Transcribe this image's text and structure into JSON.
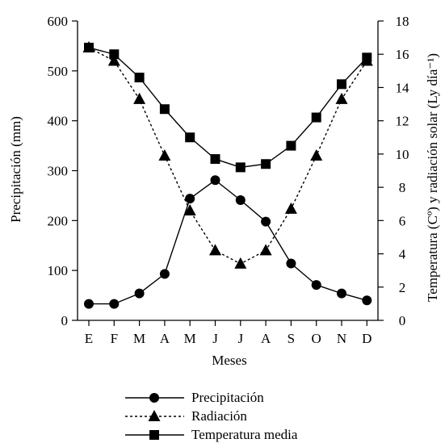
{
  "chart_data": {
    "type": "line",
    "categories": [
      "E",
      "F",
      "M",
      "A",
      "M",
      "J",
      "J",
      "A",
      "S",
      "O",
      "N",
      "D"
    ],
    "xlabel": "Meses",
    "ylabel_left": "Precipitación (mm)",
    "ylabel_right": "Temperatura (Cº) y radiación solar (Ly día⁻¹)",
    "ylim_left": [
      0,
      600
    ],
    "yticks_left": [
      0,
      100,
      200,
      300,
      400,
      500,
      600
    ],
    "ylim_right": [
      0,
      18
    ],
    "yticks_right": [
      0,
      2,
      4,
      6,
      8,
      10,
      12,
      14,
      16,
      18
    ],
    "grid": false,
    "legend_position": "bottom-center",
    "series": [
      {
        "name": "Precipitación",
        "axis": "left",
        "marker": "circle",
        "line": "solid",
        "values": [
          33,
          33,
          54,
          93,
          244,
          281,
          241,
          198,
          114,
          71,
          54,
          40
        ]
      },
      {
        "name": "Radiación",
        "axis": "right",
        "marker": "triangle",
        "line": "dotted",
        "values": [
          16.4,
          15.6,
          13.3,
          9.9,
          6.6,
          4.2,
          3.4,
          4.2,
          6.7,
          9.9,
          13.3,
          15.6
        ]
      },
      {
        "name": "Temperatura media",
        "axis": "right",
        "marker": "square",
        "line": "solid",
        "values": [
          16.4,
          16.0,
          14.6,
          12.7,
          11.0,
          9.7,
          9.2,
          9.4,
          10.5,
          12.2,
          14.2,
          15.8
        ]
      }
    ]
  }
}
